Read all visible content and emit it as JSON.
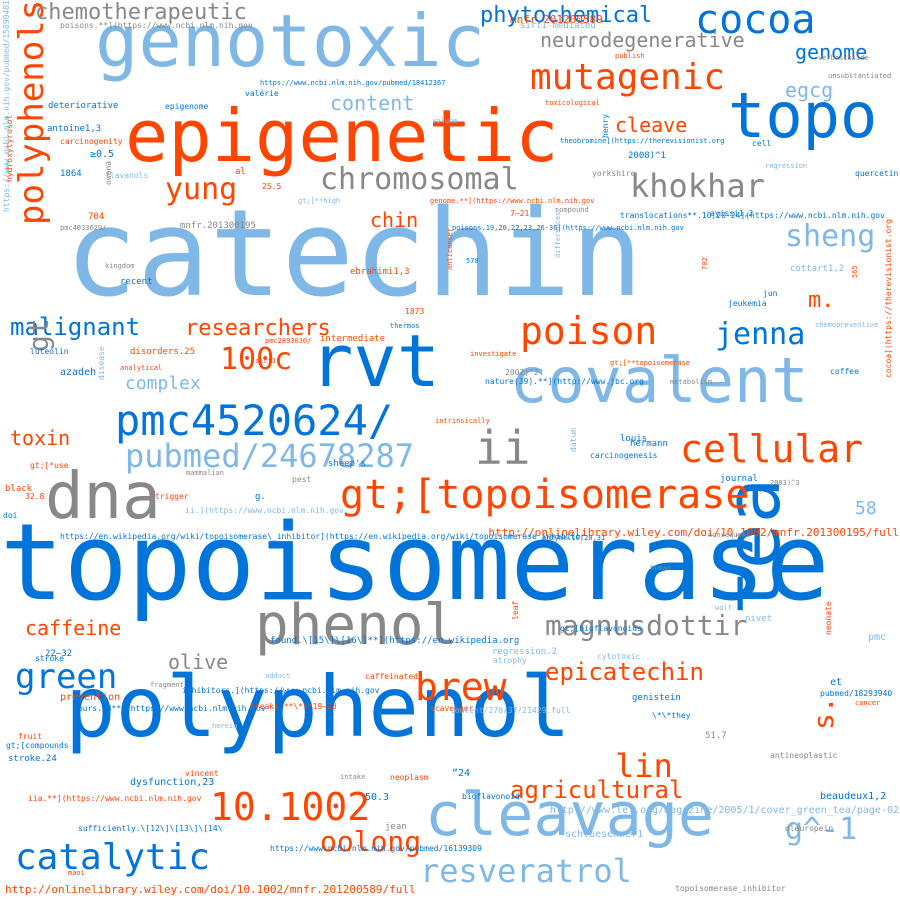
{
  "colors": {
    "orange": "#ff4500",
    "blue": "#0074d9",
    "light_blue": "#7fb8e6",
    "gray": "#888888"
  },
  "words": [
    {
      "t": "topoisomerase",
      "c": "blue"
    },
    {
      "t": "catechin",
      "c": "light_blue"
    },
    {
      "t": "polyphenol",
      "c": "blue"
    },
    {
      "t": "epigenetic",
      "c": "orange"
    },
    {
      "t": "genotoxic",
      "c": "light_blue"
    },
    {
      "t": "covalent",
      "c": "light_blue"
    },
    {
      "t": "cleavage",
      "c": "light_blue"
    },
    {
      "t": "topo",
      "c": "blue"
    },
    {
      "t": "rvt",
      "c": "blue"
    },
    {
      "t": "tea",
      "c": "blue"
    },
    {
      "t": "dna",
      "c": "gray"
    },
    {
      "t": "phenol",
      "c": "gray"
    },
    {
      "t": "cocoa",
      "c": "blue"
    },
    {
      "t": "mutagenic",
      "c": "orange"
    },
    {
      "t": "gt;[topoisomerase",
      "c": "orange"
    },
    {
      "t": "pmc4520624/",
      "c": "blue"
    },
    {
      "t": "ii",
      "c": "gray"
    },
    {
      "t": "polyphenols",
      "c": "orange"
    },
    {
      "t": "pubmed/24678287",
      "c": "light_blue"
    },
    {
      "t": "poison",
      "c": "orange"
    },
    {
      "t": "cellular",
      "c": "orange"
    },
    {
      "t": "brew",
      "c": "orange"
    },
    {
      "t": "catalytic",
      "c": "blue"
    },
    {
      "t": "10.1002",
      "c": "orange"
    },
    {
      "t": "green",
      "c": "blue"
    },
    {
      "t": "chromosomal",
      "c": "gray"
    },
    {
      "t": "khokhar",
      "c": "gray"
    },
    {
      "t": "yung",
      "c": "orange"
    },
    {
      "t": "sheng",
      "c": "light_blue"
    },
    {
      "t": "jenna",
      "c": "blue"
    },
    {
      "t": "magnusdottir",
      "c": "gray"
    },
    {
      "t": "resveratrol",
      "c": "light_blue"
    },
    {
      "t": "oolong",
      "c": "orange"
    },
    {
      "t": "epicatechin",
      "c": "orange"
    },
    {
      "t": "agricultural",
      "c": "orange"
    },
    {
      "t": "lin",
      "c": "orange"
    },
    {
      "t": "100c",
      "c": "orange"
    },
    {
      "t": "s.",
      "c": "orange"
    },
    {
      "t": "g^-1",
      "c": "light_blue"
    },
    {
      "t": "malignant",
      "c": "blue"
    },
    {
      "t": "researchers",
      "c": "orange"
    },
    {
      "t": "phytochemical",
      "c": "blue"
    },
    {
      "t": "chemotherapeutic",
      "c": "gray"
    },
    {
      "t": "neurodegenerative",
      "c": "gray"
    },
    {
      "t": "genome",
      "c": "blue"
    },
    {
      "t": "cleave",
      "c": "orange"
    },
    {
      "t": "egcg",
      "c": "light_blue"
    },
    {
      "t": "content",
      "c": "light_blue"
    },
    {
      "t": "chin",
      "c": "orange"
    },
    {
      "t": "gt",
      "c": "gray"
    },
    {
      "t": "m.",
      "c": "orange"
    },
    {
      "t": "toxin",
      "c": "orange"
    },
    {
      "t": "complex",
      "c": "light_blue"
    },
    {
      "t": "caffeine",
      "c": "orange"
    },
    {
      "t": "olive",
      "c": "gray"
    },
    {
      "t": "58",
      "c": "light_blue"
    },
    {
      "t": "mnfr.201200589",
      "c": "orange"
    },
    {
      "t": "poisons.**](https://www.ncbi.nlm.nih.gov",
      "c": "gray"
    },
    {
      "t": "sirt1-mediated",
      "c": "light_blue"
    },
    {
      "t": "https://www.ncbi.nlm.nih.gov/pubmed/18412367",
      "c": "blue"
    },
    {
      "t": "deteriorative",
      "c": "blue"
    },
    {
      "t": "epigenome",
      "c": "blue"
    },
    {
      "t": "valérie",
      "c": "blue"
    },
    {
      "t": "antoine1,3",
      "c": "blue"
    },
    {
      "t": "carcinogenity",
      "c": "orange"
    },
    {
      "t": "≥0.5",
      "c": "blue"
    },
    {
      "t": "1864",
      "c": "blue"
    },
    {
      "t": "flavanols",
      "c": "light_blue"
    },
    {
      "t": "al",
      "c": "orange"
    },
    {
      "t": "25.5",
      "c": "orange"
    },
    {
      "t": "704",
      "c": "orange"
    },
    {
      "t": "pmc4033629/",
      "c": "gray"
    },
    {
      "t": "mnfr.201300195",
      "c": "gray"
    },
    {
      "t": "kingdom",
      "c": "gray"
    },
    {
      "t": "recent",
      "c": "blue"
    },
    {
      "t": "ebrahimi1,3",
      "c": "orange"
    },
    {
      "t": "1873",
      "c": "orange"
    },
    {
      "t": "thermos",
      "c": "blue"
    },
    {
      "t": "luteolin",
      "c": "blue"
    },
    {
      "t": "azadeh",
      "c": "blue"
    },
    {
      "t": "disease",
      "c": "light_blue"
    },
    {
      "t": "disorders.25",
      "c": "orange"
    },
    {
      "t": "analytical",
      "c": "orange"
    },
    {
      "t": "intermediate",
      "c": "orange"
    },
    {
      "t": "pmc2893030/",
      "c": "orange"
    },
    {
      "t": "sirt1",
      "c": "orange"
    },
    {
      "t": "investigate",
      "c": "orange"
    },
    {
      "t": "2002)^2",
      "c": "gray"
    },
    {
      "t": "nature(39).**](http://www.jbc.org",
      "c": "blue"
    },
    {
      "t": "metabolism",
      "c": "gray"
    },
    {
      "t": "gt;[**topoisomerase",
      "c": "orange"
    },
    {
      "t": "coffee",
      "c": "blue"
    },
    {
      "t": "chemopreventive",
      "c": "light_blue"
    },
    {
      "t": "jeukemia",
      "c": "blue"
    },
    {
      "t": "jun",
      "c": "blue"
    },
    {
      "t": "cottart1,2",
      "c": "light_blue"
    },
    {
      "t": "702",
      "c": "orange"
    },
    {
      "t": "anticancer",
      "c": "orange"
    },
    {
      "t": "570",
      "c": "blue"
    },
    {
      "t": "differences/",
      "c": "light_blue"
    },
    {
      "t": "poisons.19,20,22,23,26-36](https://www.ncbi.nlm.nih.gov",
      "c": "blue"
    },
    {
      "t": "translocations**.10,20-24](https://www.ncbi.nlm.nih.gov",
      "c": "blue"
    },
    {
      "t": "ayissi1,2",
      "c": "blue"
    },
    {
      "t": "compound",
      "c": "gray"
    },
    {
      "t": "7–21",
      "c": "orange"
    },
    {
      "t": "genome.**](https://www.ncbi.nlm.nih.gov",
      "c": "orange"
    },
    {
      "t": "gt;[**high",
      "c": "light_blue"
    },
    {
      "t": "yorkshire",
      "c": "gray"
    },
    {
      "t": "2008)^1",
      "c": "blue"
    },
    {
      "t": "theobromine](https://therevisionist.org",
      "c": "blue"
    },
    {
      "t": "toxicological",
      "c": "orange"
    },
    {
      "t": "publish",
      "c": "orange"
    },
    {
      "t": "verbascoside",
      "c": "gray"
    },
    {
      "t": "unsubstantiated",
      "c": "gray"
    },
    {
      "t": "cell",
      "c": "blue"
    },
    {
      "t": "regression",
      "c": "light_blue"
    },
    {
      "t": "quercetin",
      "c": "blue"
    },
    {
      "t": "henry",
      "c": "blue"
    },
    {
      "t": "565",
      "c": "orange"
    },
    {
      "t": "owona",
      "c": "gray"
    },
    {
      "t": "hydroxytyrosol",
      "c": "orange"
    },
    {
      "t": "https://www.ncbi.nlm.nih.gov/pubmed/15890481",
      "c": "light_blue"
    },
    {
      "t": "volume",
      "c": "light_blue"
    },
    {
      "t": "cocoa](https://therevisionist.org",
      "c": "orange"
    },
    {
      "t": "http://onlinelibrary.wiley.com/doi/10.1002/mnfr.201300195/full",
      "c": "orange"
    },
    {
      "t": "https://en.wikipedia.org/wiki/topoisomerase\\_inhibitor](https://en.wikipedia.org/wiki/topoisomerase_inhibitor",
      "c": "blue"
    },
    {
      "t": "enzyme.10,20,31",
      "c": "blue"
    },
    {
      "t": "consequent",
      "c": "gray"
    },
    {
      "t": "ii.](https://www.ncbi.nlm.nih.gov",
      "c": "light_blue"
    },
    {
      "t": "gt;[*use",
      "c": "orange"
    },
    {
      "t": "black",
      "c": "orange"
    },
    {
      "t": "32.8",
      "c": "orange"
    },
    {
      "t": "doi",
      "c": "blue"
    },
    {
      "t": "mammalian",
      "c": "gray"
    },
    {
      "t": "trigger",
      "c": "orange"
    },
    {
      "t": "g.",
      "c": "blue"
    },
    {
      "t": "pest",
      "c": "gray"
    },
    {
      "t": "sheep's",
      "c": "blue"
    },
    {
      "t": "intrinsically",
      "c": "orange"
    },
    {
      "t": "louis",
      "c": "blue"
    },
    {
      "t": "carcinogenesis",
      "c": "blue"
    },
    {
      "t": "hermann",
      "c": "blue"
    },
    {
      "t": "datum",
      "c": "light_blue"
    },
    {
      "t": "journal",
      "c": "blue"
    },
    {
      "t": "2003)^3",
      "c": "gray"
    },
    {
      "t": "human",
      "c": "gray"
    },
    {
      "t": "wolf",
      "c": "light_blue"
    },
    {
      "t": "nivet",
      "c": "light_blue"
    },
    {
      "t": "found.\\[15\\]\\[16\\]**](https://en.wikipedia.org",
      "c": "blue"
    },
    {
      "t": "leaf",
      "c": "orange"
    },
    {
      "t": "gt;[bioflavonoids",
      "c": "blue"
    },
    {
      "t": "regression.2",
      "c": "light_blue"
    },
    {
      "t": "atrophy",
      "c": "light_blue"
    },
    {
      "t": "cytotoxic",
      "c": "light_blue"
    },
    {
      "t": "neonate",
      "c": "orange"
    },
    {
      "t": "pmc",
      "c": "light_blue"
    },
    {
      "t": "22–32",
      "c": "blue"
    },
    {
      "t": "stroke",
      "c": "blue"
    },
    {
      "t": "fragment",
      "c": "gray"
    },
    {
      "t": "adduct",
      "c": "light_blue"
    },
    {
      "t": "caffeinated",
      "c": "orange"
    },
    {
      "t": "prevention",
      "c": "orange"
    },
    {
      "t": "inhibitors.](https://www.ncbi.nlm.nih.gov",
      "c": "blue"
    },
    {
      "t": "breaks.**\\*\\*19–23",
      "c": "orange"
    },
    {
      "t": "scavenger",
      "c": "orange"
    },
    {
      "t": "content/270/37/21429.full",
      "c": "light_blue"
    },
    {
      "t": "genistein",
      "c": "blue"
    },
    {
      "t": "et",
      "c": "blue"
    },
    {
      "t": "pubmed/18293940",
      "c": "blue"
    },
    {
      "t": "cancer",
      "c": "orange"
    },
    {
      "t": "hours.18**](https://www.ncbi.nlm.nih.gov",
      "c": "blue"
    },
    {
      "t": "\\*\\*they",
      "c": "blue"
    },
    {
      "t": "fruit",
      "c": "orange"
    },
    {
      "t": "gt;[compounds",
      "c": "blue"
    },
    {
      "t": "herein",
      "c": "light_blue"
    },
    {
      "t": "51.7",
      "c": "gray"
    },
    {
      "t": "antineoplastic",
      "c": "gray"
    },
    {
      "t": "stroke.24",
      "c": "blue"
    },
    {
      "t": "dysfunction,23",
      "c": "blue"
    },
    {
      "t": "vincent",
      "c": "orange"
    },
    {
      "t": "intake",
      "c": "gray"
    },
    {
      "t": "neoplasm",
      "c": "orange"
    },
    {
      "t": "“24",
      "c": "blue"
    },
    {
      "t": "beaudeux1,2",
      "c": "blue"
    },
    {
      "t": "iia.**](https://www.ncbi.nlm.nih.gov",
      "c": "orange"
    },
    {
      "t": "50.3",
      "c": "blue"
    },
    {
      "t": "bioflavonoid",
      "c": "blue"
    },
    {
      "t": "http://www.lef.org/magazine/2005/1/cover_green_tea/page-02",
      "c": "light_blue"
    },
    {
      "t": "oleuropein",
      "c": "gray"
    },
    {
      "t": "sufficiently.\\[12\\]\\[13\\]\\[14\\",
      "c": "blue"
    },
    {
      "t": "jean",
      "c": "gray"
    },
    {
      "t": "schluesenner1",
      "c": "light_blue"
    },
    {
      "t": "https://www.ncbi.nlm.nih.gov/pubmed/16139309",
      "c": "blue"
    },
    {
      "t": "maoi",
      "c": "orange"
    },
    {
      "t": "http://onlinelibrary.wiley.com/doi/10.1002/mnfr.201200589/full",
      "c": "orange"
    },
    {
      "t": "topoisomerase_inhibitor",
      "c": "gray"
    }
  ]
}
